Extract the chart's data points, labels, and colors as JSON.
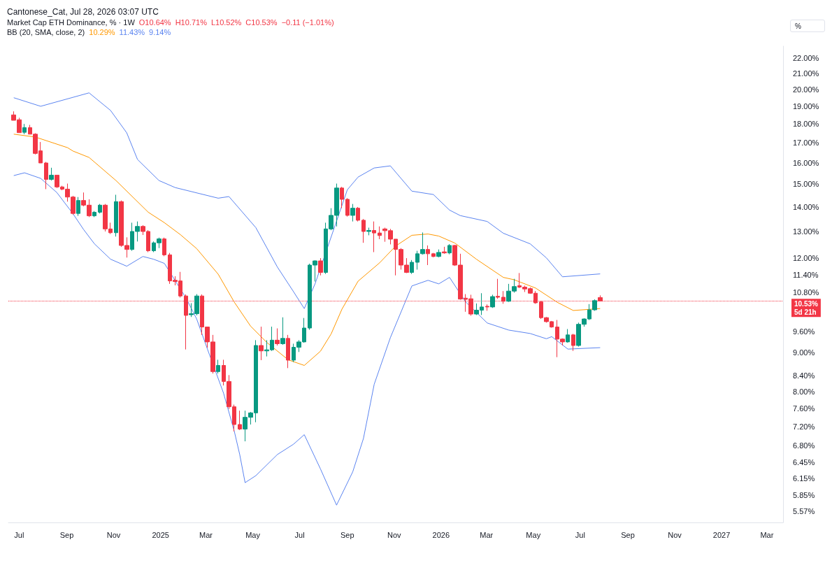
{
  "chart_data": {
    "type": "candlestick",
    "title": "Market Cap ETH Dominance, % · 1W",
    "annotations": [
      "Cantonese_Cat, Jul 28, 2026 03:07 UTC",
      "O10.64%",
      "H10.71%",
      "L10.52%",
      "C10.53%",
      "−0.11 (−1.01%)",
      "BB (20, SMA, close, 2)",
      "10.29%",
      "11.43%",
      "9.14%",
      "%"
    ],
    "x": [
      "2024-06-24",
      "2024-07-01",
      "2024-07-08",
      "2024-07-15",
      "2024-07-22",
      "2024-07-29",
      "2024-08-05",
      "2024-08-12",
      "2024-08-19",
      "2024-08-26",
      "2024-09-02",
      "2024-09-09",
      "2024-09-16",
      "2024-09-23",
      "2024-09-30",
      "2024-10-07",
      "2024-10-14",
      "2024-10-21",
      "2024-10-28",
      "2024-11-04",
      "2024-11-11",
      "2024-11-18",
      "2024-11-25",
      "2024-12-02",
      "2024-12-09",
      "2024-12-16",
      "2024-12-23",
      "2024-12-30",
      "2025-01-06",
      "2025-01-13",
      "2025-01-20",
      "2025-01-27",
      "2025-02-03",
      "2025-02-10",
      "2025-02-17",
      "2025-02-24",
      "2025-03-03",
      "2025-03-10",
      "2025-03-17",
      "2025-03-24",
      "2025-03-31",
      "2025-04-07",
      "2025-04-14",
      "2025-04-21",
      "2025-04-28",
      "2025-05-05",
      "2025-05-12",
      "2025-05-19",
      "2025-05-26",
      "2025-06-02",
      "2025-06-09",
      "2025-06-16",
      "2025-06-23",
      "2025-06-30",
      "2025-07-07",
      "2025-07-14",
      "2025-07-21",
      "2025-07-28",
      "2025-08-04",
      "2025-08-11",
      "2025-08-18",
      "2025-08-25",
      "2025-09-01",
      "2025-09-08",
      "2025-09-15",
      "2025-09-22",
      "2025-09-29",
      "2025-10-06",
      "2025-10-13",
      "2025-10-20",
      "2025-10-27",
      "2025-11-03",
      "2025-11-10",
      "2025-11-17",
      "2025-11-24",
      "2025-12-01",
      "2025-12-08",
      "2025-12-15",
      "2025-12-22",
      "2025-12-29",
      "2026-01-05",
      "2026-01-12",
      "2026-01-19",
      "2026-01-26",
      "2026-02-02",
      "2026-02-09",
      "2026-02-16",
      "2026-02-23",
      "2026-03-02",
      "2026-03-09",
      "2026-03-16",
      "2026-03-23",
      "2026-03-30",
      "2026-04-06",
      "2026-04-13",
      "2026-04-20",
      "2026-04-27",
      "2026-05-04",
      "2026-05-11",
      "2026-05-18",
      "2026-05-25",
      "2026-06-01",
      "2026-06-08",
      "2026-06-15",
      "2026-06-22",
      "2026-06-29",
      "2026-07-06",
      "2026-07-13",
      "2026-07-20",
      "2026-07-27"
    ],
    "ohlc": [
      [
        18.51,
        18.71,
        18.21,
        18.21
      ],
      [
        18.24,
        18.35,
        17.54,
        17.54
      ],
      [
        17.56,
        18.01,
        17.46,
        17.81
      ],
      [
        17.81,
        17.96,
        17.46,
        17.46
      ],
      [
        17.46,
        17.51,
        16.42,
        16.47
      ],
      [
        16.6,
        17.05,
        16.0,
        16.0
      ],
      [
        16.0,
        16.05,
        14.78,
        15.22
      ],
      [
        15.22,
        15.77,
        15.17,
        15.42
      ],
      [
        15.42,
        15.42,
        14.83,
        14.88
      ],
      [
        14.88,
        14.93,
        14.73,
        14.78
      ],
      [
        14.78,
        15.03,
        14.23,
        14.43
      ],
      [
        14.43,
        14.48,
        13.68,
        13.73
      ],
      [
        13.73,
        14.43,
        13.63,
        14.28
      ],
      [
        14.28,
        14.63,
        14.03,
        14.08
      ],
      [
        14.08,
        14.33,
        13.58,
        13.63
      ],
      [
        13.63,
        13.83,
        13.58,
        13.78
      ],
      [
        13.78,
        14.13,
        13.73,
        14.08
      ],
      [
        14.08,
        14.13,
        13.0,
        13.1
      ],
      [
        13.1,
        13.35,
        12.9,
        12.95
      ],
      [
        12.95,
        14.53,
        12.8,
        14.23
      ],
      [
        14.23,
        14.28,
        12.41,
        12.46
      ],
      [
        12.46,
        12.77,
        12.01,
        12.31
      ],
      [
        12.31,
        13.35,
        12.26,
        13.0
      ],
      [
        13.0,
        13.4,
        12.61,
        13.2
      ],
      [
        13.2,
        13.25,
        12.86,
        13.0
      ],
      [
        13.0,
        13.05,
        12.21,
        12.26
      ],
      [
        12.26,
        12.61,
        12.21,
        12.56
      ],
      [
        12.56,
        12.76,
        12.36,
        12.71
      ],
      [
        12.71,
        12.76,
        12.06,
        12.11
      ],
      [
        12.11,
        12.18,
        11.09,
        11.19
      ],
      [
        11.21,
        11.35,
        11.04,
        11.17
      ],
      [
        11.19,
        11.5,
        10.64,
        10.69
      ],
      [
        10.69,
        10.74,
        9.09,
        10.08
      ],
      [
        10.1,
        10.46,
        10.03,
        10.13
      ],
      [
        10.13,
        10.75,
        10.08,
        10.69
      ],
      [
        10.69,
        10.74,
        9.5,
        9.73
      ],
      [
        9.73,
        9.73,
        9.14,
        9.3
      ],
      [
        9.3,
        9.5,
        8.45,
        8.5
      ],
      [
        8.5,
        8.81,
        8.45,
        8.66
      ],
      [
        8.66,
        8.81,
        8.15,
        8.25
      ],
      [
        8.25,
        8.41,
        7.59,
        7.64
      ],
      [
        7.64,
        7.69,
        7.09,
        7.24
      ],
      [
        7.24,
        7.55,
        7.12,
        7.14
      ],
      [
        7.14,
        7.55,
        6.88,
        7.4
      ],
      [
        7.4,
        7.52,
        7.24,
        7.5
      ],
      [
        7.5,
        9.35,
        7.29,
        9.2
      ],
      [
        9.2,
        9.74,
        8.8,
        9.05
      ],
      [
        9.05,
        9.35,
        8.9,
        9.08
      ],
      [
        9.08,
        9.74,
        9.05,
        9.35
      ],
      [
        9.35,
        9.69,
        9.2,
        9.25
      ],
      [
        9.25,
        10.02,
        9.22,
        9.4
      ],
      [
        9.4,
        9.5,
        8.59,
        8.8
      ],
      [
        8.8,
        9.25,
        8.75,
        9.15
      ],
      [
        9.15,
        9.35,
        9.02,
        9.3
      ],
      [
        9.3,
        10.0,
        9.28,
        9.7
      ],
      [
        9.7,
        11.79,
        9.65,
        11.74
      ],
      [
        11.74,
        11.91,
        11.17,
        11.89
      ],
      [
        11.89,
        11.99,
        11.38,
        11.48
      ],
      [
        11.48,
        13.35,
        11.43,
        13.1
      ],
      [
        13.1,
        13.95,
        13.05,
        13.65
      ],
      [
        13.65,
        15.03,
        13.2,
        14.83
      ],
      [
        14.83,
        14.88,
        13.95,
        14.33
      ],
      [
        14.33,
        14.38,
        13.6,
        13.65
      ],
      [
        13.65,
        14.13,
        13.4,
        13.95
      ],
      [
        13.95,
        14.0,
        13.4,
        13.45
      ],
      [
        13.45,
        13.5,
        12.56,
        13.0
      ],
      [
        13.0,
        13.15,
        12.85,
        13.04
      ],
      [
        13.04,
        13.4,
        12.21,
        12.94
      ],
      [
        12.94,
        13.2,
        12.7,
        12.84
      ],
      [
        13.1,
        13.15,
        12.6,
        13.03
      ],
      [
        13.03,
        13.1,
        12.5,
        12.7
      ],
      [
        12.7,
        12.7,
        11.38,
        12.31
      ],
      [
        12.31,
        12.36,
        11.58,
        11.74
      ],
      [
        11.74,
        11.99,
        11.46,
        11.48
      ],
      [
        11.48,
        11.92,
        11.43,
        11.84
      ],
      [
        11.84,
        12.26,
        11.58,
        12.15
      ],
      [
        12.15,
        12.96,
        12.12,
        12.31
      ],
      [
        12.31,
        12.46,
        11.74,
        12.15
      ],
      [
        12.15,
        12.18,
        12.02,
        12.05
      ],
      [
        12.05,
        12.31,
        12.02,
        12.2
      ],
      [
        12.22,
        12.41,
        12.15,
        12.18
      ],
      [
        12.18,
        12.51,
        12.13,
        12.46
      ],
      [
        12.46,
        12.48,
        11.71,
        11.74
      ],
      [
        11.74,
        12.15,
        10.57,
        10.59
      ],
      [
        10.62,
        10.75,
        10.19,
        10.58
      ],
      [
        10.6,
        10.73,
        10.07,
        10.12
      ],
      [
        10.12,
        10.45,
        10.09,
        10.24
      ],
      [
        10.24,
        10.78,
        10.09,
        10.34
      ],
      [
        10.36,
        10.42,
        10.22,
        10.34
      ],
      [
        10.34,
        10.73,
        10.31,
        10.67
      ],
      [
        10.68,
        11.26,
        10.6,
        10.65
      ],
      [
        10.65,
        10.85,
        10.44,
        10.52
      ],
      [
        10.52,
        11.09,
        10.5,
        10.85
      ],
      [
        10.85,
        11.26,
        10.8,
        11.0
      ],
      [
        11.03,
        11.46,
        10.95,
        10.98
      ],
      [
        10.98,
        11.03,
        10.82,
        10.92
      ],
      [
        10.93,
        10.97,
        10.76,
        10.78
      ],
      [
        10.78,
        10.85,
        10.44,
        10.47
      ],
      [
        10.5,
        10.52,
        9.97,
        10.01
      ],
      [
        10.01,
        10.03,
        9.86,
        9.89
      ],
      [
        9.89,
        9.91,
        9.71,
        9.73
      ],
      [
        9.73,
        9.94,
        8.88,
        9.38
      ],
      [
        9.38,
        9.4,
        9.2,
        9.3
      ],
      [
        9.3,
        9.67,
        9.28,
        9.5
      ],
      [
        9.5,
        9.53,
        9.05,
        9.2
      ],
      [
        9.2,
        9.86,
        9.17,
        9.81
      ],
      [
        9.81,
        9.99,
        9.74,
        9.97
      ],
      [
        9.97,
        10.43,
        9.94,
        10.25
      ],
      [
        10.25,
        10.58,
        10.22,
        10.54
      ],
      [
        10.64,
        10.71,
        10.52,
        10.53
      ]
    ],
    "series": [
      {
        "type": "line",
        "color": "#ff9800",
        "x": [
          "2024-06-24",
          "2024-07-22",
          "2024-09-02",
          "2024-09-09",
          "2024-09-30",
          "2024-11-04",
          "2024-12-16",
          "2025-01-06",
          "2025-01-27",
          "2025-02-17",
          "2025-03-17",
          "2025-04-07",
          "2025-04-28",
          "2025-05-19",
          "2025-06-16",
          "2025-07-07",
          "2025-07-28",
          "2025-08-11",
          "2025-08-25",
          "2025-09-15",
          "2025-10-13",
          "2025-11-03",
          "2025-11-24",
          "2025-12-15",
          "2025-12-29",
          "2026-01-19",
          "2026-02-16",
          "2026-03-23",
          "2026-04-06",
          "2026-05-04",
          "2026-06-01",
          "2026-06-22",
          "2026-07-27"
        ],
        "values": [
          17.46,
          17.31,
          16.76,
          16.59,
          16.27,
          15.17,
          13.78,
          13.35,
          12.87,
          12.34,
          11.42,
          10.49,
          9.76,
          9.29,
          8.81,
          8.66,
          9.04,
          9.53,
          10.27,
          11.18,
          11.82,
          12.44,
          12.85,
          12.9,
          12.82,
          12.55,
          11.95,
          11.31,
          11.23,
          10.95,
          10.49,
          10.23,
          10.29
        ]
      },
      {
        "type": "line",
        "color": "#5b84f0",
        "x": [
          "2024-06-24",
          "2024-07-29",
          "2024-09-30",
          "2024-10-28",
          "2024-11-18",
          "2024-12-02",
          "2024-12-30",
          "2025-01-20",
          "2025-03-17",
          "2025-03-31",
          "2025-05-05",
          "2025-06-02",
          "2025-06-23",
          "2025-07-07",
          "2025-07-21",
          "2025-09-01",
          "2025-09-15",
          "2025-10-06",
          "2025-10-27",
          "2025-11-24",
          "2025-12-22",
          "2026-01-12",
          "2026-01-26",
          "2026-03-02",
          "2026-03-23",
          "2026-04-27",
          "2026-05-18",
          "2026-06-08",
          "2026-07-27"
        ],
        "values": [
          19.5,
          19.0,
          19.79,
          18.76,
          17.53,
          16.17,
          15.17,
          14.85,
          14.38,
          14.45,
          13.15,
          11.67,
          10.83,
          10.29,
          11.09,
          14.75,
          15.33,
          15.76,
          15.86,
          14.69,
          14.54,
          13.87,
          13.64,
          13.4,
          12.93,
          12.52,
          12.0,
          11.33,
          11.43
        ]
      },
      {
        "type": "line",
        "color": "#5b84f0",
        "x": [
          "2024-06-24",
          "2024-07-08",
          "2024-07-29",
          "2024-08-19",
          "2024-09-09",
          "2024-09-23",
          "2024-10-07",
          "2024-10-28",
          "2024-11-18",
          "2024-12-09",
          "2024-12-23",
          "2025-01-06",
          "2025-02-03",
          "2025-02-17",
          "2025-03-03",
          "2025-03-24",
          "2025-04-07",
          "2025-04-14",
          "2025-04-21",
          "2025-05-05",
          "2025-06-02",
          "2025-06-23",
          "2025-07-07",
          "2025-07-28",
          "2025-08-18",
          "2025-09-08",
          "2025-09-22",
          "2025-10-06",
          "2025-10-27",
          "2025-11-24",
          "2025-12-15",
          "2025-12-29",
          "2026-01-12",
          "2026-02-02",
          "2026-03-02",
          "2026-03-30",
          "2026-04-27",
          "2026-05-18",
          "2026-05-25",
          "2026-06-15",
          "2026-07-27"
        ],
        "values": [
          15.4,
          15.53,
          15.27,
          14.63,
          13.72,
          13.07,
          12.52,
          11.95,
          11.7,
          12.05,
          11.95,
          11.8,
          10.63,
          9.97,
          9.1,
          7.96,
          7.09,
          6.61,
          6.07,
          6.2,
          6.61,
          6.82,
          7.02,
          6.33,
          5.67,
          6.27,
          6.94,
          8.18,
          9.42,
          11.02,
          11.21,
          11.09,
          11.31,
          10.5,
          9.85,
          9.64,
          9.54,
          9.39,
          9.45,
          9.1,
          9.14
        ]
      }
    ],
    "xlim": [
      "2024-06-17",
      "2027-03-22"
    ],
    "xticks": [
      {
        "value": "2024-07-01",
        "label": "Jul"
      },
      {
        "value": "2024-09-01",
        "label": "Sep"
      },
      {
        "value": "2024-11-01",
        "label": "Nov"
      },
      {
        "value": "2025-01-01",
        "label": "2025"
      },
      {
        "value": "2025-03-01",
        "label": "Mar"
      },
      {
        "value": "2025-05-01",
        "label": "May"
      },
      {
        "value": "2025-07-01",
        "label": "Jul"
      },
      {
        "value": "2025-09-01",
        "label": "Sep"
      },
      {
        "value": "2025-11-01",
        "label": "Nov"
      },
      {
        "value": "2026-01-01",
        "label": "2026"
      },
      {
        "value": "2026-03-01",
        "label": "Mar"
      },
      {
        "value": "2026-05-01",
        "label": "May"
      },
      {
        "value": "2026-07-01",
        "label": "Jul"
      },
      {
        "value": "2026-09-01",
        "label": "Sep"
      },
      {
        "value": "2026-11-01",
        "label": "Nov"
      },
      {
        "value": "2027-01-01",
        "label": "2027"
      },
      {
        "value": "2027-03-01",
        "label": "Mar"
      }
    ],
    "ylim": [
      5.38,
      22.8
    ],
    "yticks": [
      {
        "value": 22,
        "label": "22.00%"
      },
      {
        "value": 21,
        "label": "21.00%"
      },
      {
        "value": 20,
        "label": "20.00%"
      },
      {
        "value": 19,
        "label": "19.00%"
      },
      {
        "value": 18,
        "label": "18.00%"
      },
      {
        "value": 17,
        "label": "17.00%"
      },
      {
        "value": 16,
        "label": "16.00%"
      },
      {
        "value": 15,
        "label": "15.00%"
      },
      {
        "value": 14,
        "label": "14.00%"
      },
      {
        "value": 13,
        "label": "13.00%"
      },
      {
        "value": 12,
        "label": "12.00%"
      },
      {
        "value": 11.4,
        "label": "11.40%"
      },
      {
        "value": 10.8,
        "label": "10.80%"
      },
      {
        "value": 9.6,
        "label": "9.60%"
      },
      {
        "value": 9,
        "label": "9.00%"
      },
      {
        "value": 8.4,
        "label": "8.40%"
      },
      {
        "value": 8,
        "label": "8.00%"
      },
      {
        "value": 7.6,
        "label": "7.60%"
      },
      {
        "value": 7.2,
        "label": "7.20%"
      },
      {
        "value": 6.8,
        "label": "6.80%"
      },
      {
        "value": 6.45,
        "label": "6.45%"
      },
      {
        "value": 6.15,
        "label": "6.15%"
      },
      {
        "value": 5.85,
        "label": "5.85%"
      },
      {
        "value": 5.57,
        "label": "5.57%"
      }
    ],
    "log": "y",
    "ref_lines": [
      {
        "axis": "y",
        "value": 10.53,
        "label": "10.53%\n5d 21h",
        "color": "#f23645",
        "line_style": "dotted"
      }
    ]
  }
}
